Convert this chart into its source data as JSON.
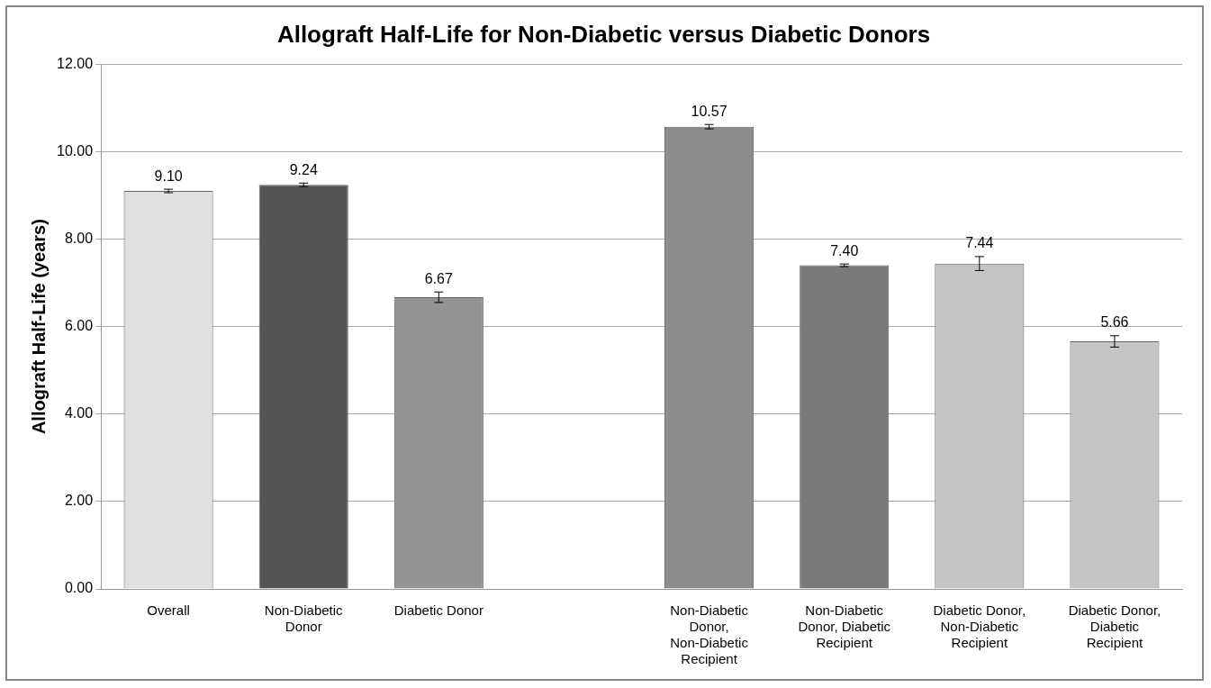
{
  "chart_data": {
    "type": "bar",
    "title": "Allograft Half-Life for Non-Diabetic versus Diabetic Donors",
    "ylabel": "Allograft Half-Life (years)",
    "categories": [
      "Overall",
      "Non-Diabetic Donor",
      "Diabetic Donor",
      null,
      "Non-Diabetic Donor, Non-Diabetic Recipient",
      "Non-Diabetic Donor, Diabetic Recipient",
      "Diabetic Donor, Non-Diabetic Recipient",
      "Diabetic Donor, Diabetic Recipient"
    ],
    "values": [
      9.1,
      9.24,
      6.67,
      null,
      10.57,
      7.4,
      7.44,
      5.66
    ],
    "errors": [
      0.04,
      0.04,
      0.12,
      null,
      0.05,
      0.03,
      0.16,
      0.13
    ],
    "colors": [
      "#e0e0e0",
      "#555555",
      "#939393",
      "#ffffff",
      "#8c8c8c",
      "#7a7a7a",
      "#c4c4c4",
      "#c4c4c4"
    ],
    "ylim": [
      0,
      12
    ],
    "yticks": [
      {
        "value": 0,
        "label": "0.00"
      },
      {
        "value": 2,
        "label": "2.00"
      },
      {
        "value": 4,
        "label": "4.00"
      },
      {
        "value": 6,
        "label": "6.00"
      },
      {
        "value": 8,
        "label": "8.00"
      },
      {
        "value": 10,
        "label": "10.00"
      },
      {
        "value": 12,
        "label": "12.00"
      }
    ],
    "value_labels": [
      "9.10",
      "9.24",
      "6.67",
      null,
      "10.57",
      "7.40",
      "7.44",
      "5.66"
    ],
    "grid": "y",
    "legend": false
  }
}
